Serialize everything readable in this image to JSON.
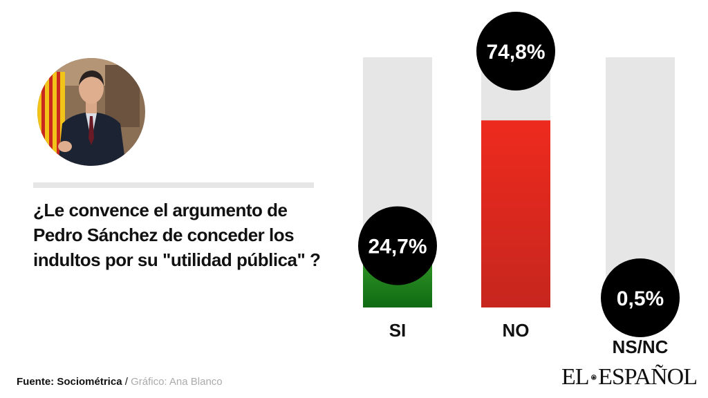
{
  "question": "¿Le convence el argumento de Pedro Sánchez de conceder los indultos por su \"utilidad pública\" ?",
  "footer": {
    "source": "Fuente: Sociométrica",
    "separator": " / ",
    "credit": "Gráfico: Ana Blanco"
  },
  "logo": {
    "left": "EL",
    "right": "ESPAÑOL"
  },
  "colors": {
    "si": "#1f8a1f",
    "no": "#e8251c",
    "nsnc": "#e6e6e6",
    "track": "#e6e6e6",
    "badge": "#000000"
  },
  "chart_data": {
    "type": "bar",
    "categories": [
      "SI",
      "NO",
      "NS/NC"
    ],
    "values": [
      24.7,
      74.8,
      0.5
    ],
    "value_labels": [
      "24,7%",
      "74,8%",
      "0,5%"
    ],
    "ylim": [
      0,
      100
    ],
    "title": "",
    "xlabel": "",
    "ylabel": ""
  }
}
